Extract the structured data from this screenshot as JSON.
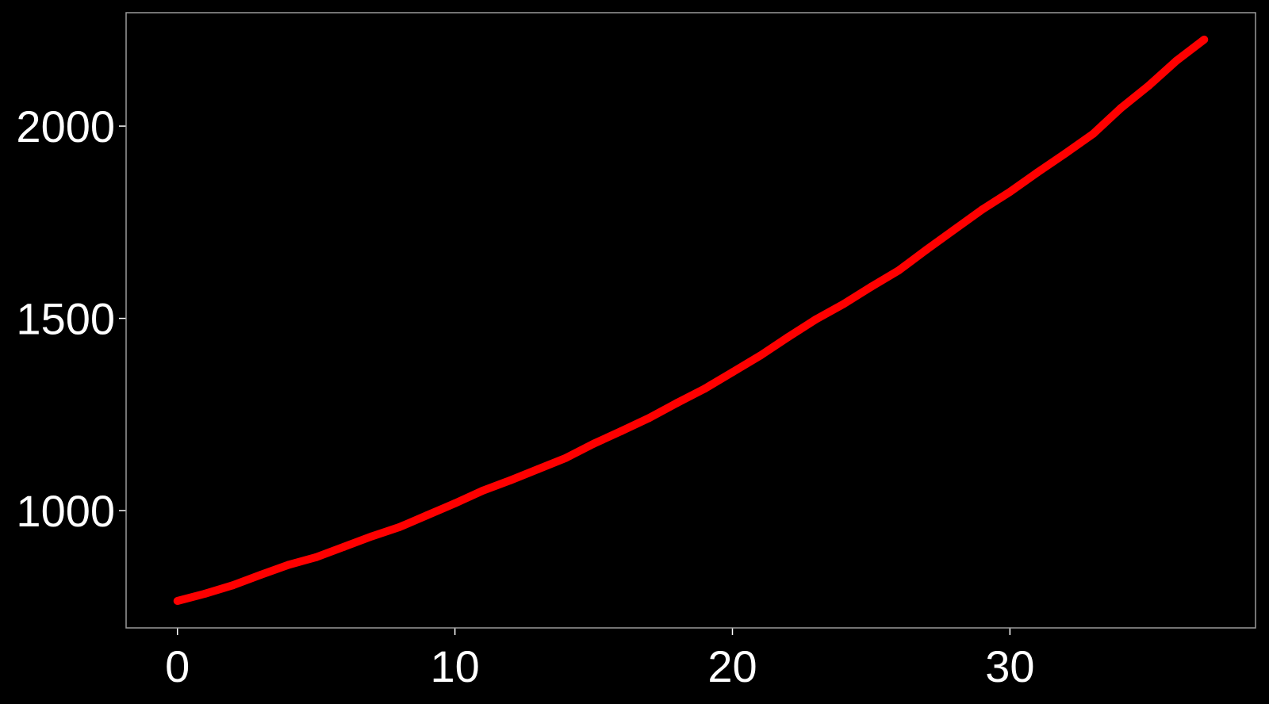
{
  "colors": {
    "background": "#000000",
    "frame": "#9a9a9a",
    "tick": "#ffffff",
    "tick_label": "#ffffff",
    "series_line": "#ff0000"
  },
  "chart_data": {
    "type": "line",
    "title": "",
    "xlabel": "",
    "ylabel": "",
    "grid": false,
    "legend": "none",
    "xlim": [
      -1.85,
      38.85
    ],
    "ylim": [
      695,
      2295
    ],
    "x_ticks": [
      0,
      10,
      20,
      30
    ],
    "y_ticks": [
      1000,
      1500,
      2000
    ],
    "series": [
      {
        "x": [
          0,
          1,
          2,
          3,
          4,
          5,
          6,
          7,
          8,
          9,
          10,
          11,
          12,
          13,
          14,
          15,
          16,
          17,
          18,
          19,
          20,
          21,
          22,
          23,
          24,
          25,
          26,
          27,
          28,
          29,
          30,
          31,
          32,
          33,
          34,
          35,
          36,
          37
        ],
        "y": [
          765,
          784,
          806,
          833,
          859,
          879,
          906,
          933,
          957,
          988,
          1019,
          1052,
          1079,
          1108,
          1137,
          1174,
          1207,
          1241,
          1280,
          1317,
          1360,
          1403,
          1451,
          1497,
          1537,
          1582,
          1625,
          1679,
          1731,
          1783,
          1829,
          1880,
          1929,
          1980,
          2047,
          2105,
          2170,
          2225
        ]
      }
    ]
  }
}
